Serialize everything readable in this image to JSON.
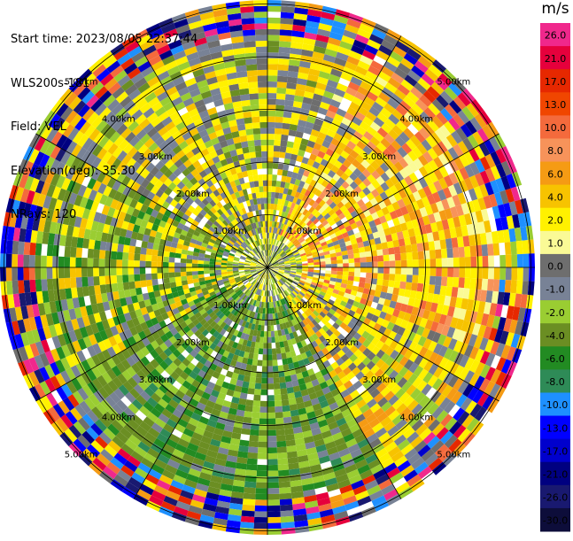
{
  "header": {
    "start_time": "Start time: 2023/08/05 22:37:44",
    "instrument": "WLS200s-181",
    "field": "Field: VEL",
    "elevation": "Elevation(deg): 35.30",
    "nrays": "NRays: 120"
  },
  "colorbar": {
    "unit": "m/s",
    "levels": [
      {
        "label": "26.0",
        "color": "#f0288c"
      },
      {
        "label": "21.0",
        "color": "#e6003c"
      },
      {
        "label": "17.0",
        "color": "#e62800"
      },
      {
        "label": "13.0",
        "color": "#f04600"
      },
      {
        "label": "10.0",
        "color": "#f46a3c"
      },
      {
        "label": "8.0",
        "color": "#f7935a"
      },
      {
        "label": "6.0",
        "color": "#f59b14"
      },
      {
        "label": "4.0",
        "color": "#f7c300"
      },
      {
        "label": "2.0",
        "color": "#fff100"
      },
      {
        "label": "1.0",
        "color": "#fafa96"
      },
      {
        "label": "0.0",
        "color": "#6e6e6e"
      },
      {
        "label": "-1.0",
        "color": "#788296"
      },
      {
        "label": "-2.0",
        "color": "#9acd32"
      },
      {
        "label": "-4.0",
        "color": "#6b8e23"
      },
      {
        "label": "-6.0",
        "color": "#228b22"
      },
      {
        "label": "-8.0",
        "color": "#2e8b57"
      },
      {
        "label": "-10.0",
        "color": "#1e90ff"
      },
      {
        "label": "-13.0",
        "color": "#0000ff"
      },
      {
        "label": "-17.0",
        "color": "#0000cd"
      },
      {
        "label": "-21.0",
        "color": "#000080"
      },
      {
        "label": "-26.0",
        "color": "#191970"
      },
      {
        "label": "-30.0",
        "color": "#0d0d3a"
      }
    ]
  },
  "chart_data": {
    "type": "heatmap",
    "projection": "polar PPI",
    "field": "VEL",
    "units": "m/s",
    "rays": 120,
    "range_ring_labels": [
      "1.00km",
      "2.00km",
      "3.00km",
      "4.00km",
      "5.00km"
    ],
    "ring_ranges_km": [
      1,
      2,
      3,
      4,
      5
    ],
    "max_range_km": 5,
    "azimuth_lines_deg": [
      0,
      30,
      60,
      90,
      120,
      150,
      180,
      210,
      240,
      270,
      300,
      330
    ],
    "regions": [
      {
        "sector": "north-west",
        "dominant_range": "-2.0 to -4.0"
      },
      {
        "sector": "north-east",
        "dominant_range": "2.0 to 8.0"
      },
      {
        "sector": "south",
        "dominant_range": "-2.0 to -8.0"
      },
      {
        "sector": "east",
        "dominant_range": "1.0 to 6.0"
      },
      {
        "sector": "outer ring",
        "dominant_range": "mixed / noise"
      }
    ]
  }
}
